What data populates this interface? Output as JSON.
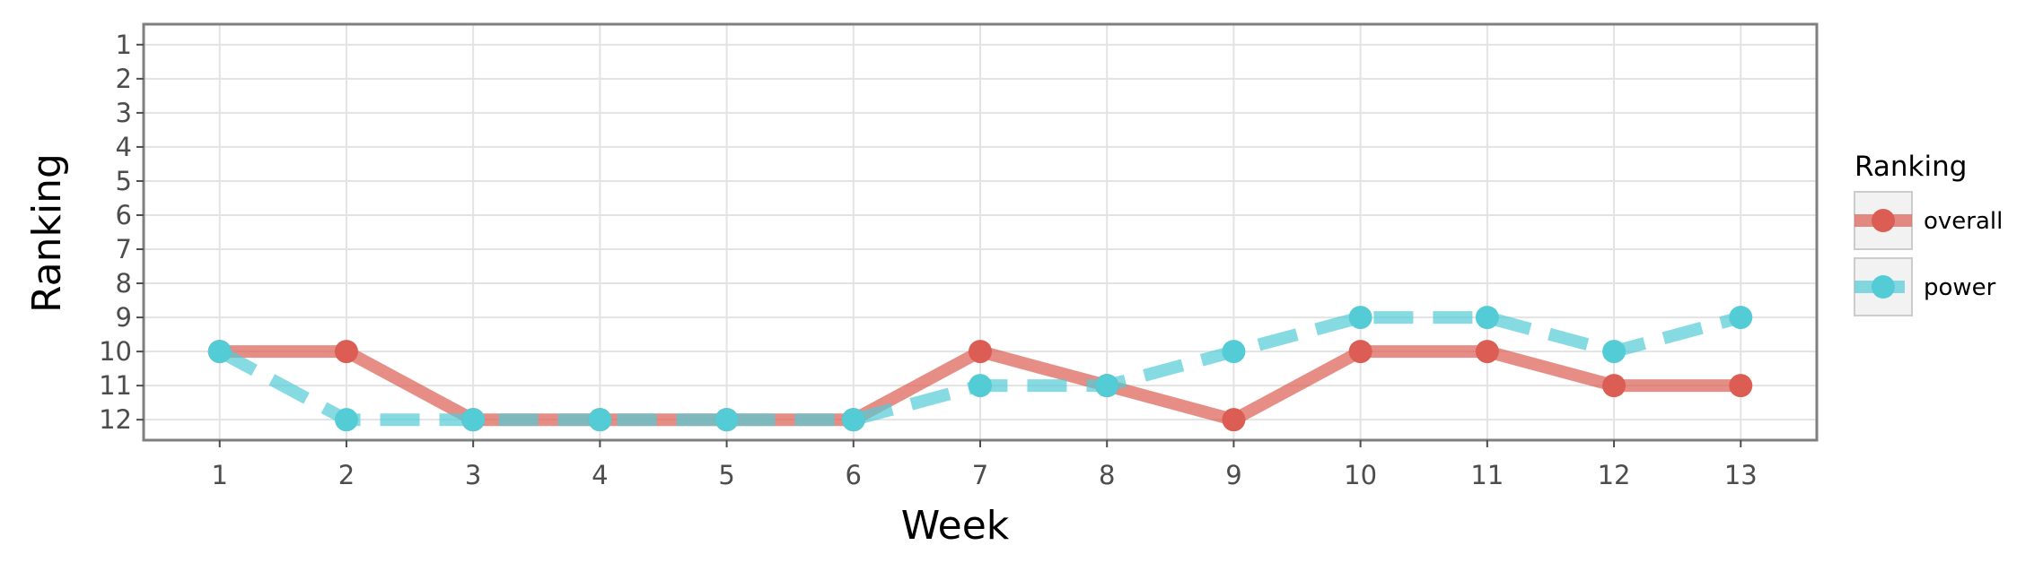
{
  "chart_data": {
    "type": "line",
    "xlabel": "Week",
    "ylabel": "Ranking",
    "x": [
      1,
      2,
      3,
      4,
      5,
      6,
      7,
      8,
      9,
      10,
      11,
      12,
      13
    ],
    "xticks": [
      "1",
      "2",
      "3",
      "4",
      "5",
      "6",
      "7",
      "8",
      "9",
      "10",
      "11",
      "12",
      "13"
    ],
    "yticks": [
      "1",
      "2",
      "3",
      "4",
      "5",
      "6",
      "7",
      "8",
      "9",
      "10",
      "11",
      "12"
    ],
    "xlim": [
      0.4,
      13.6
    ],
    "ylim": [
      12.6,
      0.4
    ],
    "y_reversed": true,
    "grid": true,
    "legend": {
      "title": "Ranking",
      "placement": "right"
    },
    "series": [
      {
        "name": "overall",
        "color": "#dc5d53",
        "line_style": "solid",
        "values": [
          10,
          10,
          12,
          12,
          12,
          12,
          10,
          11,
          12,
          10,
          10,
          11,
          11
        ]
      },
      {
        "name": "power",
        "color": "#53ccd6",
        "line_style": "dashed",
        "values": [
          10,
          12,
          12,
          12,
          12,
          12,
          11,
          11,
          10,
          9,
          9,
          10,
          9
        ]
      }
    ]
  }
}
